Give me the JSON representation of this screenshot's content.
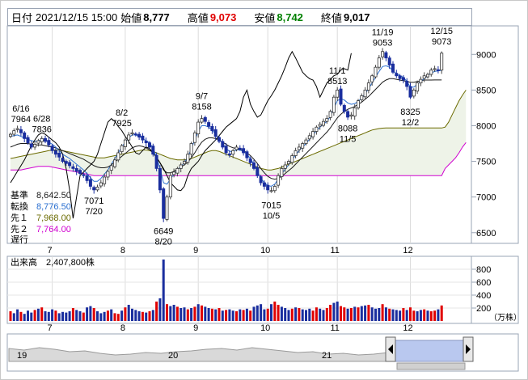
{
  "header": {
    "date_label": "日付",
    "datetime": "2021/12/15 15:00",
    "open_label": "始値",
    "open": "8,777",
    "high_label": "高値",
    "high": "9,073",
    "low_label": "安値",
    "low": "8,742",
    "close_label": "終値",
    "close": "9,017"
  },
  "indicators": {
    "kijun": {
      "label": "基準",
      "value": "8,642.50",
      "color": "#1a1a1a"
    },
    "tenkan": {
      "label": "転換",
      "value": "8,776.50",
      "color": "#2a6fd0"
    },
    "senkou1": {
      "label": "先１",
      "value": "7,968.00",
      "color": "#6b6b00"
    },
    "senkou2": {
      "label": "先２",
      "value": "7,764.00",
      "color": "#d000d0"
    },
    "chikou": {
      "label": "遅行",
      "color": "#000000"
    }
  },
  "volume_label": "出来高",
  "volume_value": "2,407,800株",
  "volume_unit": "（万株）",
  "chart_data": {
    "type": "candlestick",
    "price_axis": {
      "ticks": [
        6500,
        7000,
        7500,
        8000,
        8500,
        9000
      ],
      "ylim": [
        6350,
        9400
      ]
    },
    "month_ticks": [
      {
        "label": "7",
        "i": 12
      },
      {
        "label": "8",
        "i": 33
      },
      {
        "label": "9",
        "i": 54
      },
      {
        "label": "10",
        "i": 74
      },
      {
        "label": "11",
        "i": 94
      },
      {
        "label": "12",
        "i": 115
      }
    ],
    "annotations": [
      {
        "text": "6/16",
        "i": 3,
        "price": 7980,
        "pos": "above2"
      },
      {
        "text": "7964",
        "i": 3,
        "price": 7980,
        "pos": "above1"
      },
      {
        "text": "6/28",
        "i": 9,
        "price": 7840,
        "pos": "above2"
      },
      {
        "text": "7836",
        "i": 9,
        "price": 7840,
        "pos": "above1"
      },
      {
        "text": "7071",
        "i": 24,
        "price": 7075,
        "pos": "below1"
      },
      {
        "text": "7/20",
        "i": 24,
        "price": 7075,
        "pos": "below2"
      },
      {
        "text": "8/2",
        "i": 32,
        "price": 7925,
        "pos": "above2"
      },
      {
        "text": "7925",
        "i": 32,
        "price": 7925,
        "pos": "above1"
      },
      {
        "text": "6649",
        "i": 44,
        "price": 6649,
        "pos": "below1"
      },
      {
        "text": "8/20",
        "i": 44,
        "price": 6649,
        "pos": "below2"
      },
      {
        "text": "9/7",
        "i": 55,
        "price": 8158,
        "pos": "above2"
      },
      {
        "text": "8158",
        "i": 55,
        "price": 8158,
        "pos": "above1"
      },
      {
        "text": "7015",
        "i": 75,
        "price": 7015,
        "pos": "below1"
      },
      {
        "text": "10/5",
        "i": 75,
        "price": 7015,
        "pos": "below2"
      },
      {
        "text": "11/1",
        "i": 94,
        "price": 8513,
        "pos": "above2"
      },
      {
        "text": "8513",
        "i": 94,
        "price": 8513,
        "pos": "above1"
      },
      {
        "text": "8088",
        "i": 97,
        "price": 8088,
        "pos": "below1"
      },
      {
        "text": "11/5",
        "i": 97,
        "price": 8088,
        "pos": "below2"
      },
      {
        "text": "11/19",
        "i": 107,
        "price": 9053,
        "pos": "above2"
      },
      {
        "text": "9053",
        "i": 107,
        "price": 9053,
        "pos": "above1"
      },
      {
        "text": "8325",
        "i": 115,
        "price": 8325,
        "pos": "below1"
      },
      {
        "text": "12/2",
        "i": 115,
        "price": 8325,
        "pos": "below2"
      },
      {
        "text": "12/15",
        "i": 124,
        "price": 9073,
        "pos": "above2"
      },
      {
        "text": "9073",
        "i": 124,
        "price": 9073,
        "pos": "above1"
      }
    ],
    "closes": [
      7880,
      7930,
      7960,
      7900,
      7820,
      7760,
      7700,
      7740,
      7790,
      7820,
      7780,
      7730,
      7650,
      7600,
      7560,
      7500,
      7470,
      7440,
      7400,
      7360,
      7330,
      7300,
      7230,
      7150,
      7100,
      7140,
      7200,
      7280,
      7360,
      7440,
      7520,
      7620,
      7720,
      7800,
      7870,
      7900,
      7880,
      7840,
      7800,
      7760,
      7700,
      7600,
      7400,
      7100,
      6700,
      7000,
      7300,
      7350,
      7400,
      7450,
      7500,
      7600,
      7750,
      7900,
      8050,
      8100,
      8060,
      7990,
      7930,
      7850,
      7780,
      7700,
      7620,
      7600,
      7650,
      7700,
      7680,
      7620,
      7550,
      7480,
      7400,
      7300,
      7200,
      7150,
      7100,
      7090,
      7150,
      7300,
      7400,
      7450,
      7500,
      7580,
      7650,
      7700,
      7750,
      7800,
      7860,
      7920,
      7980,
      8020,
      8060,
      8100,
      8200,
      8400,
      8500,
      8300,
      8200,
      8120,
      8150,
      8250,
      8350,
      8420,
      8500,
      8600,
      8700,
      8820,
      8950,
      9040,
      8950,
      8850,
      8750,
      8700,
      8660,
      8640,
      8550,
      8400,
      8500,
      8600,
      8650,
      8700,
      8720,
      8780,
      8800,
      8780,
      9017
    ],
    "tenkan": [
      7850,
      7860,
      7870,
      7850,
      7830,
      7810,
      7790,
      7780,
      7790,
      7800,
      7790,
      7770,
      7740,
      7700,
      7650,
      7600,
      7570,
      7540,
      7500,
      7460,
      7420,
      7380,
      7330,
      7270,
      7220,
      7220,
      7260,
      7320,
      7380,
      7460,
      7540,
      7620,
      7700,
      7770,
      7830,
      7870,
      7870,
      7850,
      7820,
      7790,
      7760,
      7680,
      7560,
      7400,
      7200,
      7180,
      7250,
      7320,
      7380,
      7430,
      7480,
      7560,
      7680,
      7800,
      7920,
      8000,
      8000,
      7980,
      7940,
      7880,
      7820,
      7750,
      7680,
      7640,
      7640,
      7660,
      7660,
      7640,
      7600,
      7540,
      7460,
      7360,
      7260,
      7200,
      7160,
      7150,
      7180,
      7250,
      7330,
      7390,
      7450,
      7520,
      7590,
      7650,
      7700,
      7750,
      7810,
      7870,
      7930,
      7980,
      8020,
      8060,
      8130,
      8250,
      8350,
      8380,
      8360,
      8320,
      8300,
      8310,
      8340,
      8390,
      8450,
      8520,
      8600,
      8680,
      8760,
      8830,
      8840,
      8820,
      8770,
      8730,
      8700,
      8680,
      8620,
      8540,
      8540,
      8580,
      8620,
      8660,
      8700,
      8740,
      8760,
      8770,
      8776
    ],
    "kijun": [
      7700,
      7720,
      7740,
      7750,
      7750,
      7750,
      7740,
      7730,
      7730,
      7730,
      7720,
      7710,
      7700,
      7690,
      7670,
      7650,
      7630,
      7610,
      7590,
      7570,
      7550,
      7530,
      7500,
      7470,
      7440,
      7420,
      7410,
      7410,
      7420,
      7450,
      7490,
      7530,
      7570,
      7610,
      7650,
      7690,
      7710,
      7720,
      7710,
      7690,
      7660,
      7620,
      7560,
      7480,
      7380,
      7340,
      7340,
      7360,
      7390,
      7420,
      7450,
      7490,
      7550,
      7620,
      7700,
      7770,
      7810,
      7830,
      7830,
      7820,
      7800,
      7770,
      7740,
      7710,
      7690,
      7680,
      7670,
      7650,
      7620,
      7580,
      7530,
      7470,
      7400,
      7340,
      7290,
      7260,
      7250,
      7260,
      7290,
      7330,
      7370,
      7410,
      7460,
      7510,
      7560,
      7610,
      7660,
      7710,
      7760,
      7810,
      7860,
      7910,
      7970,
      8040,
      8110,
      8160,
      8200,
      8230,
      8250,
      8270,
      8300,
      8330,
      8370,
      8410,
      8460,
      8510,
      8560,
      8610,
      8640,
      8660,
      8660,
      8650,
      8640,
      8630,
      8620,
      8610,
      8610,
      8620,
      8630,
      8640,
      8640,
      8640,
      8642,
      8642,
      8642
    ],
    "senkou1": [
      7540,
      7550,
      7560,
      7570,
      7580,
      7590,
      7600,
      7610,
      7620,
      7630,
      7640,
      7650,
      7660,
      7660,
      7660,
      7650,
      7640,
      7630,
      7620,
      7610,
      7600,
      7590,
      7580,
      7570,
      7560,
      7550,
      7550,
      7550,
      7560,
      7570,
      7580,
      7590,
      7600,
      7610,
      7620,
      7630,
      7640,
      7650,
      7660,
      7660,
      7650,
      7640,
      7620,
      7600,
      7580,
      7560,
      7540,
      7530,
      7520,
      7520,
      7520,
      7530,
      7540,
      7560,
      7580,
      7600,
      7620,
      7640,
      7650,
      7650,
      7640,
      7620,
      7600,
      7580,
      7560,
      7540,
      7520,
      7500,
      7480,
      7460,
      7440,
      7420,
      7400,
      7390,
      7380,
      7380,
      7390,
      7400,
      7420,
      7440,
      7460,
      7480,
      7500,
      7520,
      7540,
      7560,
      7580,
      7600,
      7620,
      7640,
      7660,
      7680,
      7700,
      7720,
      7740,
      7760,
      7780,
      7800,
      7820,
      7840,
      7860,
      7880,
      7900,
      7920,
      7940,
      7950,
      7960,
      7966,
      7968,
      7968,
      7968,
      7968,
      7968,
      7968,
      7968,
      7968,
      7968,
      7968,
      7968,
      7968,
      7968,
      7968,
      7968,
      7968,
      7968
    ],
    "senkou2": [
      7380,
      7380,
      7380,
      7380,
      7390,
      7400,
      7410,
      7420,
      7430,
      7430,
      7430,
      7430,
      7420,
      7410,
      7400,
      7390,
      7380,
      7370,
      7360,
      7350,
      7340,
      7330,
      7320,
      7310,
      7300,
      7300,
      7300,
      7300,
      7300,
      7300,
      7300,
      7300,
      7300,
      7300,
      7300,
      7300,
      7300,
      7300,
      7300,
      7300,
      7300,
      7300,
      7300,
      7300,
      7300,
      7300,
      7300,
      7300,
      7300,
      7300,
      7300,
      7300,
      7300,
      7300,
      7300,
      7300,
      7300,
      7300,
      7300,
      7300,
      7300,
      7300,
      7300,
      7300,
      7300,
      7300,
      7300,
      7300,
      7300,
      7300,
      7300,
      7300,
      7300,
      7300,
      7300,
      7300,
      7300,
      7300,
      7300,
      7300,
      7300,
      7300,
      7300,
      7300,
      7300,
      7300,
      7300,
      7300,
      7300,
      7300,
      7300,
      7300,
      7300,
      7300,
      7300,
      7300,
      7300,
      7300,
      7300,
      7300,
      7300,
      7300,
      7300,
      7300,
      7300,
      7300,
      7300,
      7300,
      7300,
      7300,
      7300,
      7300,
      7300,
      7300,
      7300,
      7300,
      7300,
      7300,
      7300,
      7300,
      7300,
      7300,
      7300,
      7300,
      7300
    ],
    "senkou2_future": [
      7400,
      7450,
      7500,
      7550,
      7620,
      7700,
      7764
    ],
    "senkou1_future": [
      7980,
      8050,
      8150,
      8250,
      8350,
      8430,
      8500
    ],
    "volume_axis": {
      "ticks": [
        200,
        400,
        600,
        800
      ],
      "ylim": [
        0,
        950
      ]
    },
    "volumes": [
      150,
      120,
      180,
      140,
      110,
      160,
      130,
      170,
      190,
      210,
      150,
      140,
      180,
      160,
      120,
      140,
      130,
      150,
      200,
      170,
      150,
      130,
      210,
      230,
      200,
      150,
      120,
      140,
      160,
      180,
      120,
      110,
      160,
      210,
      250,
      190,
      170,
      150,
      140,
      130,
      150,
      170,
      300,
      350,
      950,
      260,
      230,
      250,
      220,
      200,
      210,
      180,
      200,
      220,
      260,
      240,
      220,
      200,
      190,
      180,
      200,
      160,
      170,
      180,
      160,
      150,
      180,
      170,
      190,
      160,
      220,
      240,
      260,
      180,
      190,
      260,
      300,
      250,
      220,
      200,
      170,
      190,
      210,
      200,
      180,
      170,
      190,
      160,
      210,
      190,
      170,
      200,
      250,
      280,
      300,
      230,
      210,
      190,
      200,
      220,
      210,
      230,
      240,
      250,
      210,
      190,
      200,
      260,
      210,
      190,
      180,
      170,
      160,
      200,
      170,
      210,
      160,
      150,
      170,
      180,
      160,
      150,
      160,
      180,
      240
    ],
    "volume_colors": [
      "r",
      "b",
      "b",
      "r",
      "b",
      "b",
      "b",
      "r",
      "b",
      "r",
      "b",
      "b",
      "b",
      "r",
      "b",
      "b",
      "b",
      "b",
      "r",
      "b",
      "b",
      "r",
      "b",
      "b",
      "r",
      "b",
      "b",
      "b",
      "r",
      "b",
      "r",
      "r",
      "b",
      "r",
      "b",
      "b",
      "b",
      "b",
      "r",
      "b",
      "r",
      "b",
      "r",
      "b",
      "b",
      "r",
      "b",
      "b",
      "r",
      "b",
      "b",
      "r",
      "b",
      "r",
      "b",
      "r",
      "b",
      "b",
      "r",
      "b",
      "r",
      "b",
      "r",
      "b",
      "b",
      "r",
      "b",
      "r",
      "b",
      "r",
      "b",
      "b",
      "b",
      "b",
      "r",
      "b",
      "r",
      "r",
      "b",
      "b",
      "b",
      "r",
      "b",
      "r",
      "b",
      "b",
      "b",
      "r",
      "r",
      "b",
      "b",
      "r",
      "r",
      "b",
      "b",
      "r",
      "r",
      "b",
      "r",
      "b",
      "r",
      "b",
      "b",
      "r",
      "b",
      "b",
      "b",
      "r",
      "b",
      "r",
      "b",
      "b",
      "b",
      "r",
      "b",
      "r",
      "r",
      "b",
      "b",
      "r",
      "b",
      "r",
      "r",
      "b",
      "r"
    ],
    "nav_labels": [
      {
        "text": "19",
        "x": 20
      },
      {
        "text": "20",
        "x": 207
      },
      {
        "text": "21",
        "x": 397
      }
    ]
  }
}
